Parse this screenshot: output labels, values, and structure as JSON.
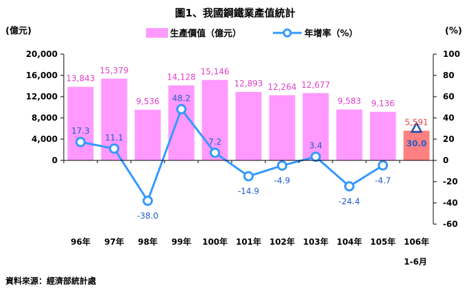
{
  "chart_data": {
    "type": "bar",
    "title": "圖1、我國鋼鐵業產值統計",
    "left_axis_unit": "(億元)",
    "right_axis_unit": "(%)",
    "categories": [
      "96年",
      "97年",
      "98年",
      "99年",
      "100年",
      "101年",
      "102年",
      "103年",
      "104年",
      "105年",
      "106年"
    ],
    "category_sublabel": "1-6月",
    "series": [
      {
        "name": "生產價值（億元）",
        "type": "bar",
        "axis": "left",
        "values": [
          13843,
          15379,
          9536,
          14128,
          15146,
          12893,
          12264,
          12677,
          9583,
          9136,
          5591
        ],
        "labels": [
          "13,843",
          "15,379",
          "9,536",
          "14,128",
          "15,146",
          "12,893",
          "12,264",
          "12,677",
          "9,583",
          "9,136",
          "5,591"
        ]
      },
      {
        "name": "年增率（%）",
        "type": "line",
        "axis": "right",
        "values": [
          17.3,
          11.1,
          -38.0,
          48.2,
          7.2,
          -14.9,
          -4.9,
          3.4,
          -24.4,
          -4.7,
          30.0
        ],
        "labels": [
          "17.3",
          "11.1",
          "-38.0",
          "48.2",
          "7.2",
          "-14.9",
          "-4.9",
          "3.4",
          "-24.4",
          "-4.7",
          "30.0"
        ]
      }
    ],
    "left_ylim": [
      0,
      20000
    ],
    "left_ticks": [
      "20,000",
      "16,000",
      "12,000",
      "8,000",
      "4,000",
      "0"
    ],
    "left_tick_values": [
      20000,
      16000,
      12000,
      8000,
      4000,
      0
    ],
    "right_ylim": [
      -60,
      100
    ],
    "right_ticks": [
      "100",
      "80",
      "60",
      "40",
      "20",
      "0",
      "-20",
      "-40",
      "-60"
    ],
    "right_tick_values": [
      100,
      80,
      60,
      40,
      20,
      0,
      -20,
      -40,
      -60
    ],
    "legend_position": "top",
    "colors": {
      "bar": "#ff99ff",
      "bar_highlight": "#ff8080",
      "line": "#3399ff",
      "bar_label": "#e040c8",
      "bar_label_highlight": "#e8413c",
      "line_label": "#1f5fc9"
    }
  },
  "source_note": "資料來源：經濟部統計處"
}
